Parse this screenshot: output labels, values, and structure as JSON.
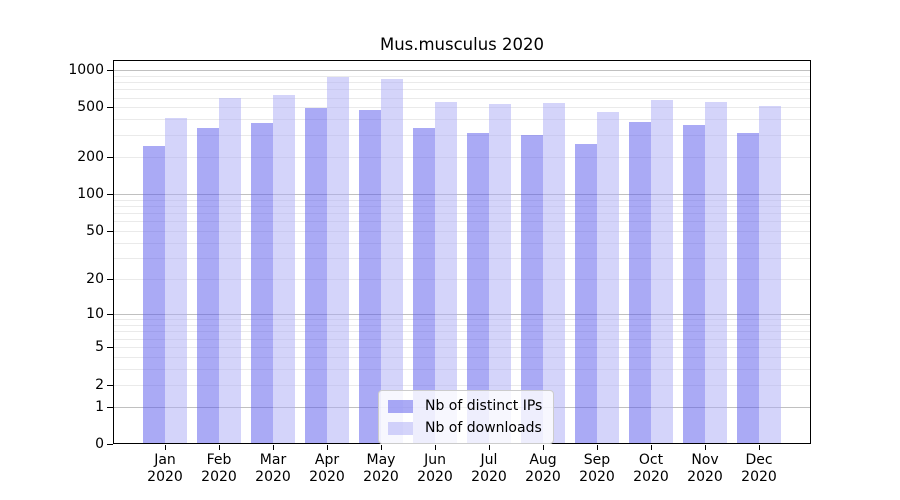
{
  "chart_data": {
    "type": "bar",
    "title": "Mus.musculus 2020",
    "categories": [
      "Jan 2020",
      "Feb 2020",
      "Mar 2020",
      "Apr 2020",
      "May 2020",
      "Jun 2020",
      "Jul 2020",
      "Aug 2020",
      "Sep 2020",
      "Oct 2020",
      "Nov 2020",
      "Dec 2020"
    ],
    "series": [
      {
        "name": "Nb of distinct IPs",
        "color": "#5555eb",
        "opacity": 0.5,
        "values": [
          244,
          344,
          373,
          493,
          475,
          344,
          313,
          302,
          255,
          381,
          360,
          313
        ]
      },
      {
        "name": "Nb of downloads",
        "color": "#aaaaf5",
        "opacity": 0.5,
        "values": [
          410,
          598,
          627,
          874,
          842,
          555,
          531,
          542,
          463,
          577,
          555,
          516
        ]
      }
    ],
    "xlabel": "",
    "ylabel": "",
    "yscale": "log1p",
    "y_ticks": [
      1000,
      500,
      200,
      100,
      50,
      20,
      10,
      5,
      2,
      1,
      0
    ],
    "ylim": [
      0,
      1200
    ],
    "grid": "both-major-and-minor",
    "legend_position": "lower-center-inside"
  }
}
